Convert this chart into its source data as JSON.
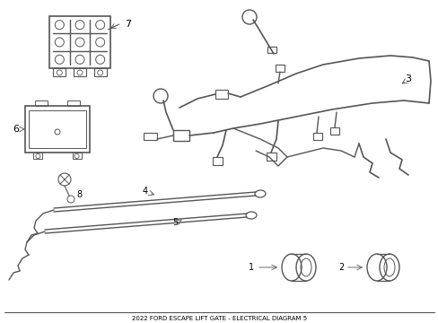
{
  "bg_color": "#ffffff",
  "line_color": "#555555",
  "label_color": "#000000",
  "fig_width": 4.89,
  "fig_height": 3.6,
  "dpi": 100,
  "title": "2022 FORD ESCAPE LIFT GATE - ELECTRICAL DIAGRAM 5"
}
